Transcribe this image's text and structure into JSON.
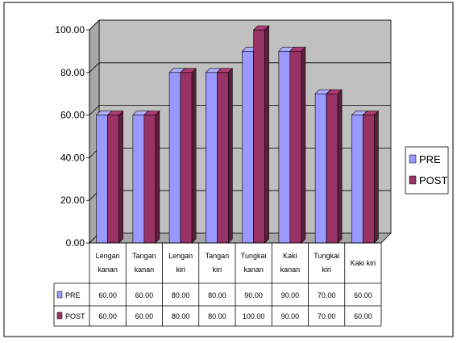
{
  "chart_data": {
    "type": "bar",
    "title": "",
    "xlabel": "",
    "ylabel": "",
    "ylim": [
      0,
      100
    ],
    "y_ticks": [
      "0.00",
      "20.00",
      "40.00",
      "60.00",
      "80.00",
      "100.00"
    ],
    "categories": [
      [
        "Lengan",
        "kanan"
      ],
      [
        "Tangan",
        "kanan"
      ],
      [
        "Lengan",
        "kiri"
      ],
      [
        "Tangan",
        "kiri"
      ],
      [
        "Tungkai",
        "kanan"
      ],
      [
        "Kaki",
        "kanan"
      ],
      [
        "Tungkai",
        "kiri"
      ],
      [
        "Kaki kiri"
      ]
    ],
    "series": [
      {
        "name": "PRE",
        "color": "#9999FF",
        "values": [
          60,
          60,
          80,
          80,
          90,
          90,
          70,
          60
        ],
        "labels": [
          "60.00",
          "60.00",
          "80.00",
          "80.00",
          "90.00",
          "90.00",
          "70.00",
          "60.00"
        ]
      },
      {
        "name": "POST",
        "color": "#993366",
        "values": [
          60,
          60,
          80,
          80,
          100,
          90,
          70,
          60
        ],
        "labels": [
          "60.00",
          "60.00",
          "80.00",
          "80.00",
          "100.00",
          "90.00",
          "70.00",
          "60.00"
        ]
      }
    ],
    "grid": true,
    "legend": "right",
    "data_table": true,
    "wall_color": "#C0C0C0"
  }
}
